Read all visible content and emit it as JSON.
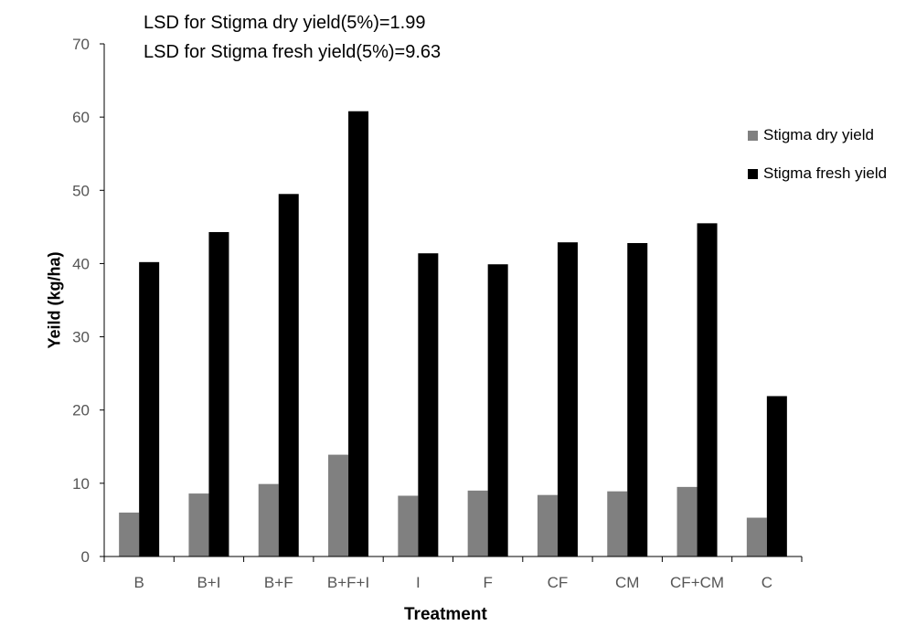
{
  "chart_data": {
    "type": "bar",
    "annotations": [
      "LSD for Stigma dry yield(5%)=1.99",
      "LSD for Stigma fresh yield(5%)=9.63"
    ],
    "xlabel": "Treatment",
    "ylabel": "Yeild (kg/ha)",
    "ylim": [
      0,
      70
    ],
    "yticks": [
      0,
      10,
      20,
      30,
      40,
      50,
      60,
      70
    ],
    "categories": [
      "B",
      "B+I",
      "B+F",
      "B+F+I",
      "I",
      "F",
      "CF",
      "CM",
      "CF+CM",
      "C"
    ],
    "series": [
      {
        "name": "Stigma dry yield",
        "color": "#808080",
        "values": [
          6.0,
          8.6,
          9.9,
          13.9,
          8.3,
          9.0,
          8.4,
          8.9,
          9.5,
          5.3
        ]
      },
      {
        "name": "Stigma fresh yield",
        "color": "#000000",
        "values": [
          40.2,
          44.3,
          49.5,
          60.8,
          41.4,
          39.9,
          42.9,
          42.8,
          45.5,
          21.9
        ]
      }
    ],
    "grid": false,
    "legend_position": "right"
  }
}
